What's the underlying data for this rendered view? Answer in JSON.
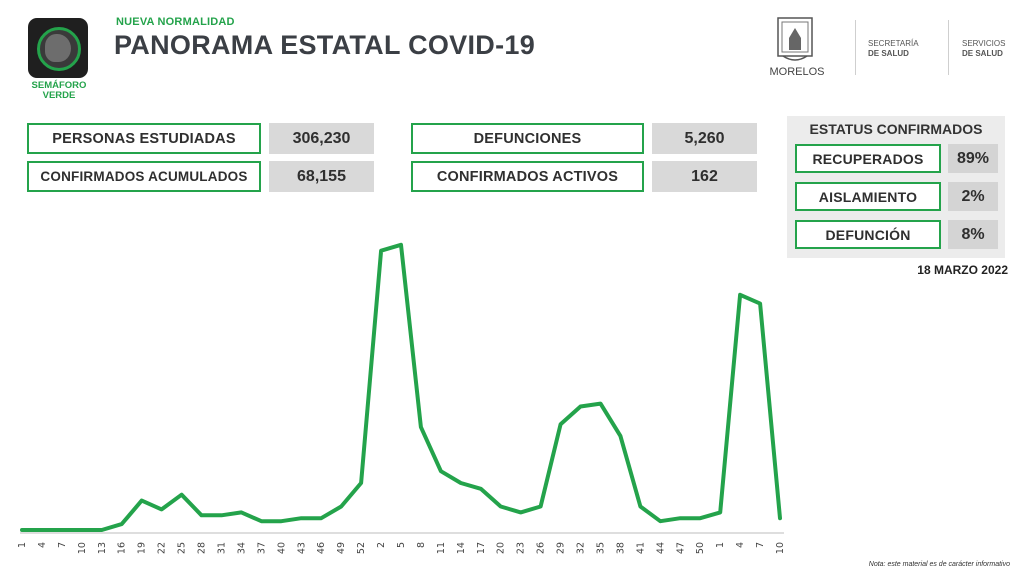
{
  "header": {
    "semaforo_label": "SEMÁFORO VERDE",
    "supertitle": "NUEVA NORMALIDAD",
    "title": "PANORAMA ESTATAL COVID-19",
    "state_label": "MORELOS",
    "secretaria_line1": "SECRETARÍA",
    "secretaria_line2": "DE SALUD",
    "servicios_line1": "SERVICIOS",
    "servicios_line2": "DE SALUD"
  },
  "stats": {
    "personas_estudiadas": {
      "label": "PERSONAS ESTUDIADAS",
      "value": "306,230"
    },
    "confirmados_acumulados": {
      "label": "CONFIRMADOS ACUMULADOS",
      "value": "68,155"
    },
    "defunciones": {
      "label": "DEFUNCIONES",
      "value": "5,260"
    },
    "confirmados_activos": {
      "label": "CONFIRMADOS ACTIVOS",
      "value": "162"
    }
  },
  "status": {
    "title": "ESTATUS CONFIRMADOS",
    "items": [
      {
        "label": "RECUPERADOS",
        "value": "89%"
      },
      {
        "label": "AISLAMIENTO",
        "value": "2%"
      },
      {
        "label": "DEFUNCIÓN",
        "value": "8%"
      }
    ]
  },
  "date": "18 MARZO 2022",
  "note": "Nota: este material es de carácter informativo",
  "colors": {
    "accent": "#24a34b",
    "value_bg": "#d9d9d9",
    "panel_bg": "#ececec"
  },
  "chart_data": {
    "type": "line",
    "x": [
      "1",
      "4",
      "7",
      "10",
      "13",
      "16",
      "19",
      "22",
      "25",
      "28",
      "31",
      "34",
      "37",
      "40",
      "43",
      "46",
      "49",
      "52",
      "2",
      "5",
      "8",
      "11",
      "14",
      "17",
      "20",
      "23",
      "26",
      "29",
      "32",
      "35",
      "38",
      "41",
      "44",
      "47",
      "50",
      "1",
      "4",
      "7",
      "10"
    ],
    "series": [
      {
        "values": [
          0,
          0,
          0,
          0,
          0,
          2,
          10,
          7,
          12,
          5,
          5,
          6,
          3,
          3,
          4,
          4,
          8,
          16,
          95,
          97,
          35,
          20,
          16,
          14,
          8,
          6,
          8,
          36,
          42,
          43,
          32,
          8,
          3,
          4,
          4,
          6,
          80,
          77,
          4
        ]
      }
    ],
    "line_color": "#24a34b",
    "grid": false,
    "legend": "none"
  }
}
